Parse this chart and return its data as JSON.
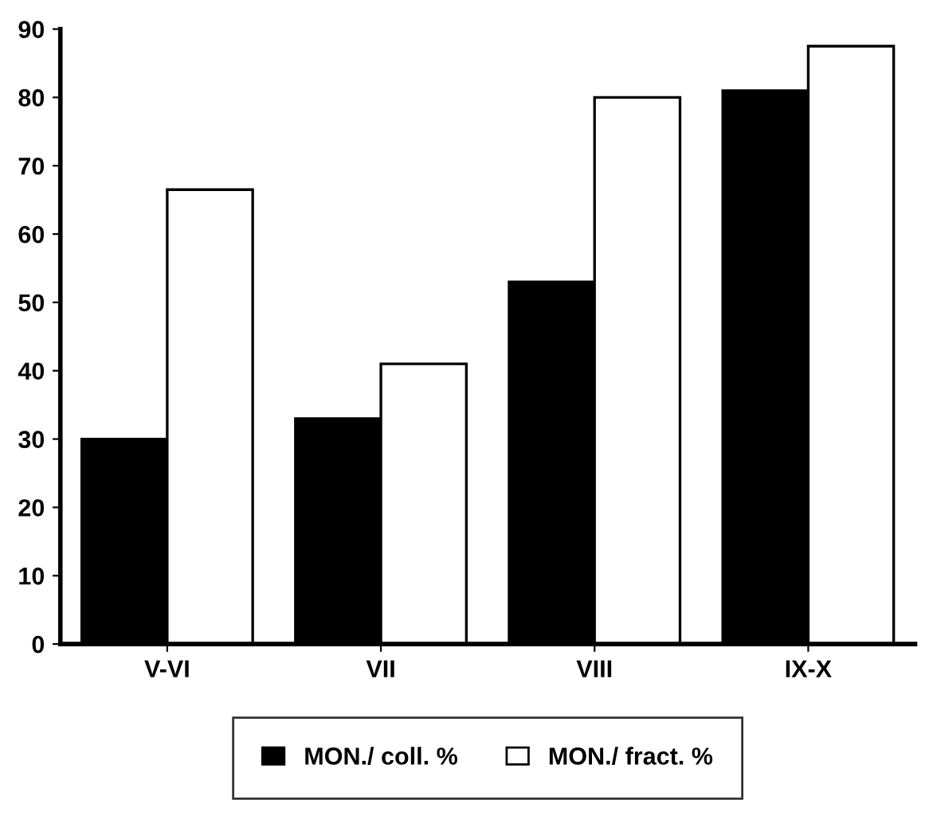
{
  "chart_data": {
    "type": "bar",
    "categories": [
      "V-VI",
      "VII",
      "VIII",
      "IX-X"
    ],
    "series": [
      {
        "name": "MON./ coll. %",
        "color": "#000000",
        "values": [
          30,
          33,
          53,
          81
        ]
      },
      {
        "name": "MON./ fract. %",
        "color": "#ffffff",
        "values": [
          66.5,
          41,
          80,
          87.5
        ]
      }
    ],
    "ylim": [
      0,
      90
    ],
    "yticks": [
      0,
      10,
      20,
      30,
      40,
      50,
      60,
      70,
      80,
      90
    ],
    "grid": false,
    "legend": "bottom"
  }
}
